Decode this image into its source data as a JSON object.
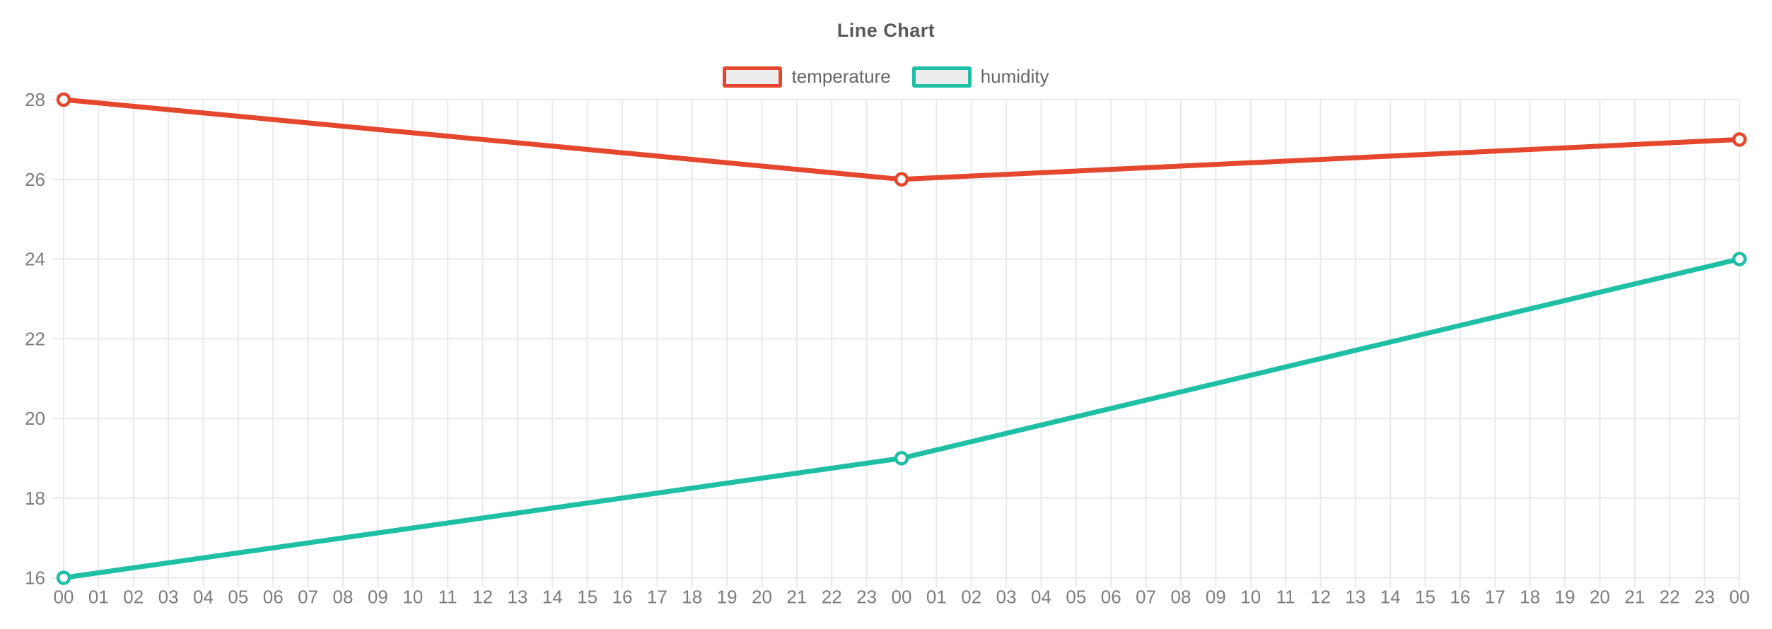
{
  "chart_data": {
    "type": "line",
    "title": "Line Chart",
    "legend_position": "top",
    "grid": true,
    "x_labels": [
      "00",
      "01",
      "02",
      "03",
      "04",
      "05",
      "06",
      "07",
      "08",
      "09",
      "10",
      "11",
      "12",
      "13",
      "14",
      "15",
      "16",
      "17",
      "18",
      "19",
      "20",
      "21",
      "22",
      "23",
      "00",
      "01",
      "02",
      "03",
      "04",
      "05",
      "06",
      "07",
      "08",
      "09",
      "10",
      "11",
      "12",
      "13",
      "14",
      "15",
      "16",
      "17",
      "18",
      "19",
      "20",
      "21",
      "22",
      "23",
      "00"
    ],
    "y_ticks": [
      16,
      18,
      20,
      22,
      24,
      26,
      28
    ],
    "y_range": [
      16,
      28
    ],
    "series": [
      {
        "name": "temperature",
        "color": "#e5472e",
        "x_indices": [
          0,
          24,
          48
        ],
        "values": [
          28,
          26,
          27
        ]
      },
      {
        "name": "humidity",
        "color": "#1fbfa5",
        "x_indices": [
          0,
          24,
          48
        ],
        "values": [
          16,
          19,
          24
        ]
      }
    ],
    "colors": {
      "grid": "#e9e9e9",
      "tick_text": "#7d7d7d",
      "title_text": "#595959",
      "legend_text": "#666666",
      "legend_box_fill": "#ededed",
      "point_fill": "#ffffff"
    }
  }
}
